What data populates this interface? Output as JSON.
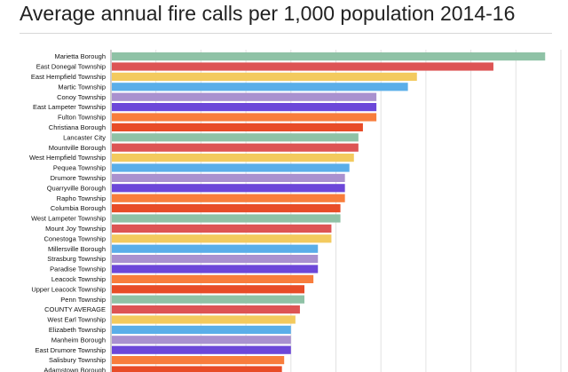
{
  "chart_data": {
    "type": "bar",
    "orientation": "horizontal",
    "title": "Average annual fire calls per 1,000 population 2014-16",
    "xlabel": "",
    "ylabel": "",
    "grid": true,
    "xlim": [
      0,
      100
    ],
    "categories": [
      "Marietta Borough",
      "East Donegal Township",
      "East Hempfield Township",
      "Martic Township",
      "Conoy Township",
      "East Lampeter Township",
      "Fulton Township",
      "Christiana Borough",
      "Lancaster City",
      "Mountville Borough",
      "West Hempfield Township",
      "Pequea Township",
      "Drumore Township",
      "Quarryville Borough",
      "Rapho Township",
      "Columbia Borough",
      "West Lampeter Township",
      "Mount Joy Township",
      "Conestoga Township",
      "Millersville Borough",
      "Strasburg Township",
      "Paradise Township",
      "Leacock Township",
      "Upper Leacock Township",
      "Penn Township",
      "COUNTY AVERAGE",
      "West Earl Township",
      "Elizabeth Township",
      "Manheim Borough",
      "East Drumore Township",
      "Salisbury Township",
      "Adamstown Borough"
    ],
    "values": [
      96.5,
      85.0,
      68.0,
      66.0,
      59.0,
      59.0,
      59.0,
      56.0,
      55.0,
      55.0,
      54.0,
      53.0,
      52.0,
      52.0,
      52.0,
      51.0,
      51.0,
      49.0,
      49.0,
      46.0,
      46.0,
      46.0,
      45.0,
      43.0,
      43.0,
      42.0,
      41.0,
      40.0,
      40.0,
      40.0,
      38.5,
      38.0
    ],
    "colors": [
      "#8fc2a6",
      "#dd5454",
      "#f3ca5e",
      "#5aaee9",
      "#a991cf",
      "#6c47d9",
      "#f87d3c",
      "#e84c27",
      "#8fc2a6",
      "#dd5454",
      "#f3ca5e",
      "#5aaee9",
      "#a991cf",
      "#6c47d9",
      "#f87d3c",
      "#e84c27",
      "#8fc2a6",
      "#dd5454",
      "#f3ca5e",
      "#5aaee9",
      "#a991cf",
      "#6c47d9",
      "#f87d3c",
      "#e84c27",
      "#8fc2a6",
      "#dd5454",
      "#f3ca5e",
      "#5aaee9",
      "#a991cf",
      "#6c47d9",
      "#f87d3c",
      "#e84c27"
    ]
  }
}
